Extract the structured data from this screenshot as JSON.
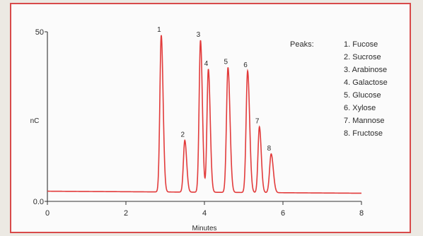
{
  "chart_data": {
    "type": "line",
    "title": "",
    "xlabel": "Minutes",
    "ylabel": "nC",
    "xlim": [
      0,
      8
    ],
    "ylim": [
      0,
      50
    ],
    "x_ticks": [
      "0",
      "2",
      "4",
      "6",
      "8"
    ],
    "y_ticks": [
      {
        "value": 0,
        "label": "0.0"
      },
      {
        "value": 50,
        "label": "50"
      }
    ],
    "grid": false,
    "series": [
      {
        "name": "",
        "color": "#e23b3b",
        "baseline_start": 3.0,
        "baseline_end": 2.4,
        "peaks": [
          {
            "label": "1",
            "x": 2.9,
            "y": 49.0,
            "width": 0.035
          },
          {
            "label": "2",
            "x": 3.5,
            "y": 18.0,
            "width": 0.035
          },
          {
            "label": "3",
            "x": 3.9,
            "y": 47.5,
            "width": 0.035
          },
          {
            "label": "4",
            "x": 4.1,
            "y": 39.0,
            "width": 0.035
          },
          {
            "label": "5",
            "x": 4.6,
            "y": 39.5,
            "width": 0.038
          },
          {
            "label": "6",
            "x": 5.1,
            "y": 38.5,
            "width": 0.038
          },
          {
            "label": "7",
            "x": 5.4,
            "y": 22.0,
            "width": 0.035
          },
          {
            "label": "8",
            "x": 5.7,
            "y": 14.0,
            "width": 0.04
          }
        ]
      }
    ],
    "legend": {
      "title": "Peaks:",
      "placement": "top-right",
      "entries": [
        "1. Fucose",
        "2. Sucrose",
        "3. Arabinose",
        "4. Galactose",
        "5. Glucose",
        "6. Xylose",
        "7. Mannose",
        "8. Fructose"
      ]
    }
  }
}
